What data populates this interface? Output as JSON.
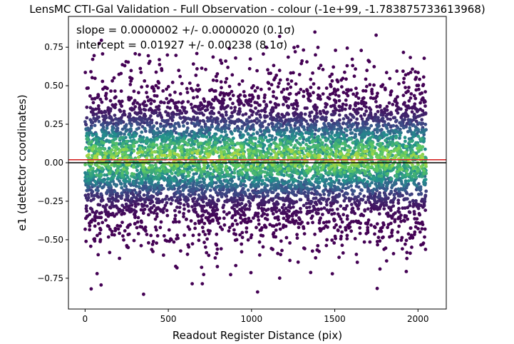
{
  "chart_data": {
    "type": "scatter",
    "title": "LensMC CTI-Gal Validation - Full Observation - colour (-1e+99, -1.783875733613968)",
    "xlabel": "Readout Register Distance (pix)",
    "ylabel": "e1 (detector coordinates)",
    "xlim": [
      -100,
      2170
    ],
    "ylim": [
      -0.95,
      0.95
    ],
    "x_ticks": [
      0,
      500,
      1000,
      1500,
      2000
    ],
    "x_tick_labels": [
      "0",
      "500",
      "1000",
      "1500",
      "2000"
    ],
    "y_ticks": [
      -0.75,
      -0.5,
      -0.25,
      0.0,
      0.25,
      0.5,
      0.75
    ],
    "y_tick_labels": [
      "−0.75",
      "−0.50",
      "−0.25",
      "0.00",
      "0.25",
      "0.50",
      "0.75"
    ],
    "grid": false,
    "colormap": "viridis",
    "point_distribution": {
      "x_range": [
        0,
        2050
      ],
      "y_center": 0.02,
      "y_spread_sd": 0.25,
      "y_range": [
        -0.87,
        0.88
      ],
      "point_count_approx": 26000
    },
    "reference_lines": [
      {
        "kind": "zero",
        "y": 0.0,
        "color": "#000000"
      },
      {
        "kind": "fit",
        "y": 0.01927,
        "color": "#d62728"
      }
    ],
    "annotations": [
      "slope = 0.0000002 +/- 0.0000020 (0.1σ)",
      "intercept = 0.01927 +/- 0.00238 (8.1σ)"
    ]
  }
}
